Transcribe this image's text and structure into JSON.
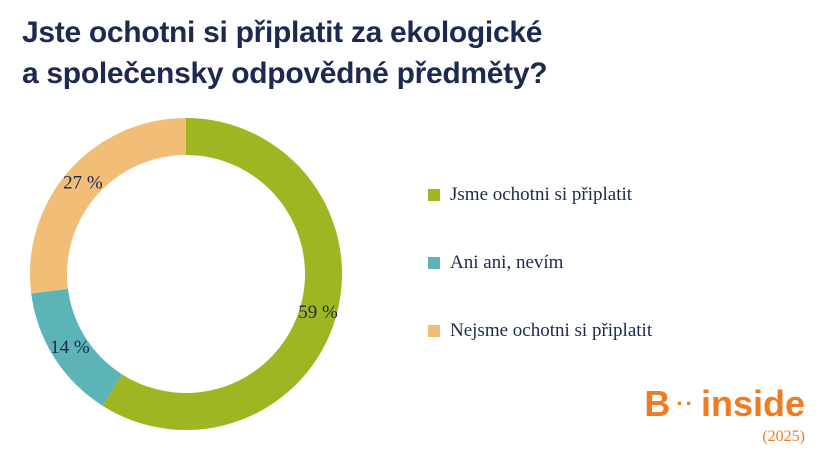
{
  "title_lines": [
    "Jste ochotni si připlatit za ekologické",
    "a společensky odpovědné předměty?"
  ],
  "chart_data": {
    "type": "pie",
    "donut": true,
    "categories": [
      "Jsme ochotni si připlatit",
      "Ani ani, nevím",
      "Nejsme ochotni si připlatit"
    ],
    "values": [
      59,
      14,
      27
    ],
    "labels": [
      "59 %",
      "14 %",
      "27 %"
    ],
    "colors": [
      "#9db621",
      "#5db4b7",
      "#f1bd77"
    ],
    "legend_position": "right"
  },
  "legend": [
    {
      "label": "Jsme ochotni si připlatit",
      "color": "#9db621"
    },
    {
      "label": "Ani ani, nevím",
      "color": "#5db4b7"
    },
    {
      "label": "Nejsme ochotni si připlatit",
      "color": "#f1bd77"
    }
  ],
  "logo": {
    "left": "B",
    "dots": "··",
    "right": "inside"
  },
  "year": "(2025)",
  "colors": {
    "title": "#1d2951",
    "brand": "#ef7b22"
  }
}
